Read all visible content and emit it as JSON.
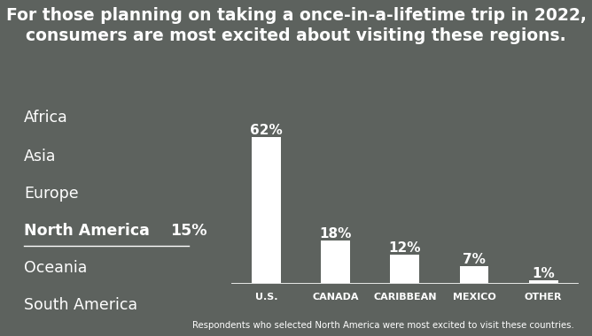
{
  "chart_data": {
    "type": "bar",
    "title": "For those planning on taking a once-in-a-lifetime trip in 2022, consumers are most excited about visiting these regions.",
    "categories": [
      "U.S.",
      "CANADA",
      "CARIBBEAN",
      "MEXICO",
      "OTHER"
    ],
    "values": [
      62,
      18,
      12,
      7,
      1
    ],
    "value_labels": [
      "62%",
      "18%",
      "12%",
      "7%",
      "1%"
    ],
    "data_labels": true,
    "tick_labels": "x",
    "color": "#ffffff",
    "ylim": [
      0,
      62
    ],
    "regions": {
      "items": [
        "Africa",
        "Asia",
        "Europe",
        "North America",
        "Oceania",
        "South America"
      ],
      "selected": "North America",
      "selected_value": 15,
      "selected_label": "15%"
    },
    "footnote": "Respondents who selected North America were most excited to visit these countries."
  }
}
